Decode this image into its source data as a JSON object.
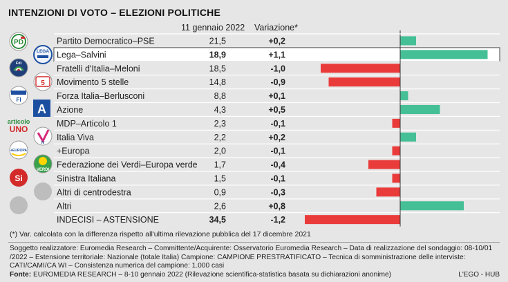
{
  "title": "INTENZIONI DI VOTO – ELEZIONI POLITICHE",
  "chart_data": {
    "type": "bar",
    "column_headers": {
      "value": "11 gennaio 2022",
      "change": "Variazione*"
    },
    "rows": [
      {
        "party": "Partito Democratico–PSE",
        "value": "21,5",
        "change": "+0,2",
        "change_num": 0.2
      },
      {
        "party": "Lega–Salvini",
        "value": "18,9",
        "change": "+1,1",
        "change_num": 1.1
      },
      {
        "party": "Fratelli d'Italia–Meloni",
        "value": "18,5",
        "change": "-1,0",
        "change_num": -1.0
      },
      {
        "party": "Movimento 5 stelle",
        "value": "14,8",
        "change": "-0,9",
        "change_num": -0.9
      },
      {
        "party": "Forza Italia–Berlusconi",
        "value": "8,8",
        "change": "+0,1",
        "change_num": 0.1
      },
      {
        "party": "Azione",
        "value": "4,3",
        "change": "+0,5",
        "change_num": 0.5
      },
      {
        "party": "MDP–Articolo 1",
        "value": "2,3",
        "change": "-0,1",
        "change_num": -0.1
      },
      {
        "party": "Italia Viva",
        "value": "2,2",
        "change": "+0,2",
        "change_num": 0.2
      },
      {
        "party": "+Europa",
        "value": "2,0",
        "change": "-0,1",
        "change_num": -0.1
      },
      {
        "party": "Federazione dei Verdi–Europa verde",
        "value": "1,7",
        "change": "-0,4",
        "change_num": -0.4
      },
      {
        "party": "Sinistra Italiana",
        "value": "1,5",
        "change": "-0,1",
        "change_num": -0.1
      },
      {
        "party": "Altri di centrodestra",
        "value": "0,9",
        "change": "-0,3",
        "change_num": -0.3
      },
      {
        "party": "Altri",
        "value": "2,6",
        "change": "+0,8",
        "change_num": 0.8
      },
      {
        "party": "INDECISI – ASTENSIONE",
        "value": "34,5",
        "change": "-1,2",
        "change_num": -1.2
      }
    ],
    "highlight_row": 1,
    "colors": {
      "positive": "#45bf96",
      "negative": "#ea3b3b",
      "highlight_bg": "#ffffff",
      "row_bg": "#e6e6e6"
    }
  },
  "logos": {
    "pd": "PD",
    "lega": "LEGA",
    "fdi": "FdI",
    "m5s": "5",
    "fi": "FI",
    "azione": "A",
    "articolo1_top": "articolo",
    "articolo1_bottom": "UNO",
    "iv": "IV",
    "europa": "+EUROPA",
    "verdi": "VERDI",
    "si": "Si"
  },
  "footnote": "(*) Var. calcolata con la differenza rispetto all'ultima rilevazione pubblica del 17 dicembre 2021",
  "source_text": "Soggetto realizzatore: Euromedia Research – Committente/Acquirente: Osservatorio Euromedia Research – Data di realizzazione del sondaggio: 08-10/01 /2022 – Estensione territoriale: Nazionale (totale Italia) Campione: CAMPIONE PRESTRATIFICATO – Tecnica di somministrazione delle interviste: CATI/CAMI/CA WI – Consistenza numerica del campione: 1.000 casi",
  "fonte_label": "Fonte:",
  "fonte_text": " EUROMEDIA RESEARCH – 8-10 gennaio 2022 (Rilevazione scientifica-statistica basata su dichiarazioni anonime)",
  "credit": "L'EGO - HUB"
}
